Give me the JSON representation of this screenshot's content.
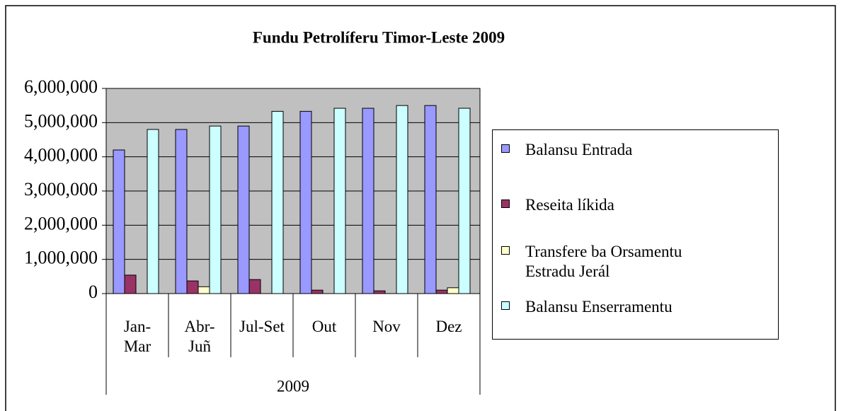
{
  "chart_data": {
    "type": "bar",
    "title": "Fundu Petrolíferu Timor-Leste 2009",
    "categories": [
      "Jan-Mar",
      "Abr-Juñ",
      "Jul-Set",
      "Out",
      "Nov",
      "Dez"
    ],
    "group_label": "2009",
    "series": [
      {
        "name": "Balansu Entrada",
        "color": "#9999ff",
        "values": [
          4200000,
          4800000,
          4900000,
          5330000,
          5420000,
          5500000
        ]
      },
      {
        "name": "Reseita líkida",
        "color": "#993366",
        "values": [
          540000,
          370000,
          410000,
          100000,
          80000,
          100000
        ]
      },
      {
        "name": "Transfere ba Orsamentu Estradu Jerál",
        "color": "#ffffcc",
        "values": [
          0,
          200000,
          0,
          0,
          0,
          170000
        ]
      },
      {
        "name": "Balansu Enserramentu",
        "color": "#ccffff",
        "values": [
          4800000,
          4900000,
          5330000,
          5420000,
          5500000,
          5420000
        ]
      }
    ],
    "ylim": [
      0,
      6000000
    ],
    "yticks": [
      0,
      {
        "value": 1000000,
        "label": "1,000,000"
      },
      {
        "value": 2000000,
        "label": "2,000,000"
      },
      {
        "value": 3000000,
        "label": "3,000,000"
      },
      {
        "value": 4000000,
        "label": "4,000,000"
      },
      {
        "value": 5000000,
        "label": "5,000,000"
      },
      {
        "value": 6000000,
        "label": "6,000,000"
      }
    ],
    "grid": true,
    "legend": "right",
    "plot_background": "#c0c0c0"
  }
}
